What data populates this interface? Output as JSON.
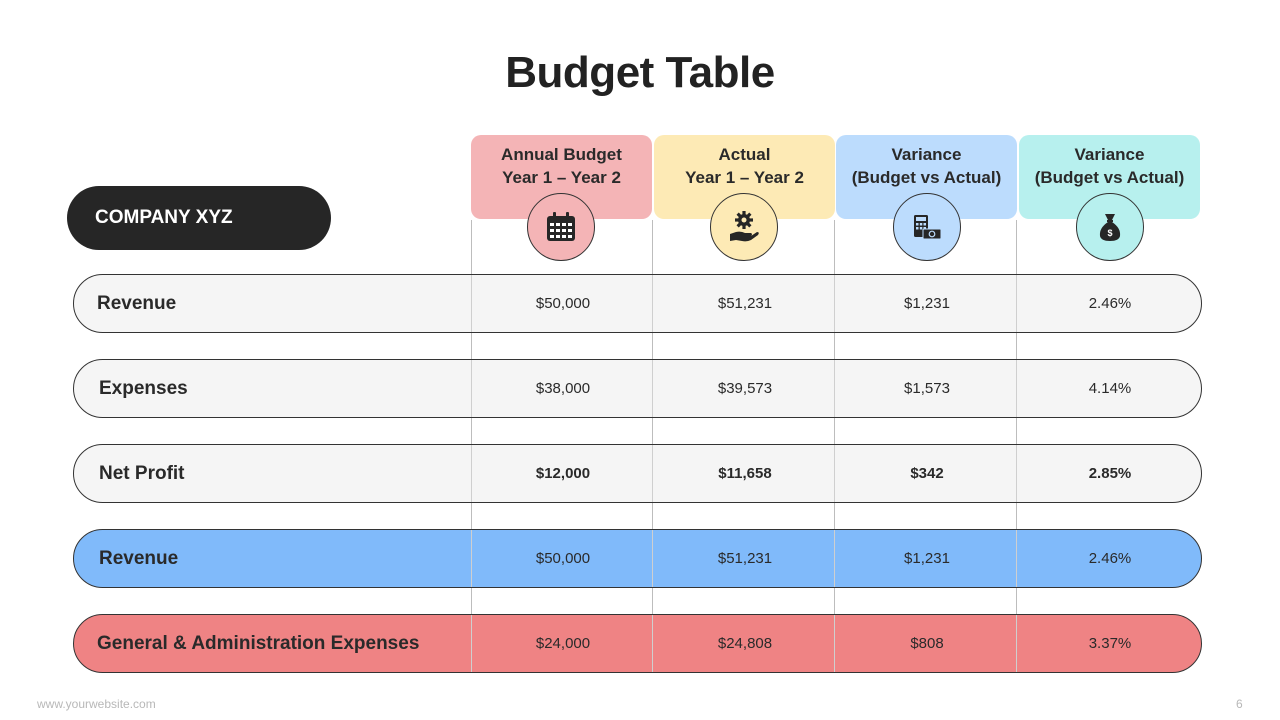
{
  "title": "Budget Table",
  "company": "COMPANY XYZ",
  "columns": [
    {
      "line1": "Annual Budget",
      "line2": "Year 1 – Year 2",
      "icon": "calendar-icon",
      "color": "#f4b4b6"
    },
    {
      "line1": "Actual",
      "line2": "Year 1 – Year 2",
      "icon": "gear-hand-icon",
      "color": "#fdeab5"
    },
    {
      "line1": "Variance",
      "line2": "(Budget vs Actual)",
      "icon": "calculator-cash-icon",
      "color": "#bcdcfd"
    },
    {
      "line1": "Variance",
      "line2": "(Budget vs Actual)",
      "icon": "money-bag-icon",
      "color": "#b7f0ee"
    }
  ],
  "rows": [
    {
      "label": "Revenue",
      "values": [
        "$50,000",
        "$51,231",
        "$1,231",
        "2.46%"
      ],
      "color": "#f5f5f5",
      "bold": false
    },
    {
      "label": "Expenses",
      "values": [
        "$38,000",
        "$39,573",
        "$1,573",
        "4.14%"
      ],
      "color": "#f5f5f5",
      "bold": false
    },
    {
      "label": "Net Profit",
      "values": [
        "$12,000",
        "$11,658",
        "$342",
        "2.85%"
      ],
      "color": "#f5f5f5",
      "bold": true
    },
    {
      "label": "Revenue",
      "values": [
        "$50,000",
        "$51,231",
        "$1,231",
        "2.46%"
      ],
      "color": "#80bafa",
      "bold": false
    },
    {
      "label": "General & Administration Expenses",
      "values": [
        "$24,000",
        "$24,808",
        "$808",
        "3.37%"
      ],
      "color": "#ef8384",
      "bold": false
    }
  ],
  "footer": {
    "website": "www.yourwebsite.com",
    "page": "6"
  }
}
